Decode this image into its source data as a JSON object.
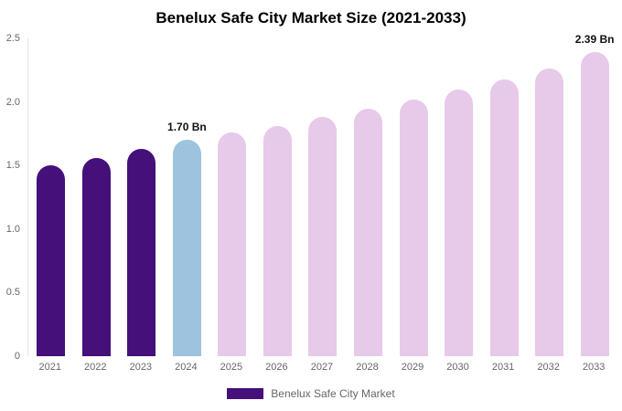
{
  "chart_data": {
    "type": "bar",
    "title": "Benelux Safe City Market Size (2021-2033)",
    "categories": [
      "2021",
      "2022",
      "2023",
      "2024",
      "2025",
      "2026",
      "2027",
      "2028",
      "2029",
      "2030",
      "2031",
      "2032",
      "2033"
    ],
    "values": [
      1.5,
      1.56,
      1.63,
      1.7,
      1.76,
      1.81,
      1.88,
      1.95,
      2.02,
      2.1,
      2.18,
      2.26,
      2.39
    ],
    "unit": "Bn",
    "xlabel": "",
    "ylabel": "",
    "ylim": [
      0,
      2.5
    ],
    "yticks": [
      "0",
      "0.5",
      "1.0",
      "1.5",
      "2.0",
      "2.5"
    ],
    "grid": false,
    "legend_position": "bottom",
    "bar_colors": [
      "#45107A",
      "#45107A",
      "#45107A",
      "#9DC3DE",
      "#E7C9EA",
      "#E7C9EA",
      "#E7C9EA",
      "#E7C9EA",
      "#E7C9EA",
      "#E7C9EA",
      "#E7C9EA",
      "#E7C9EA",
      "#E7C9EA"
    ],
    "annotations": [
      {
        "category": "2024",
        "text": "1.70 Bn"
      },
      {
        "category": "2033",
        "text": "2.39 Bn"
      }
    ]
  },
  "legend": {
    "label": "Benelux Safe City Market",
    "swatch_color": "#45107A"
  }
}
